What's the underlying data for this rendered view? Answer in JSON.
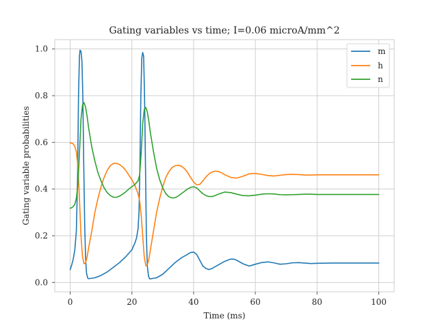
{
  "chart_data": {
    "type": "line",
    "title": "Gating variables vs time; I=0.06 microA/mm^2",
    "xlabel": "Time (ms)",
    "ylabel": "Gating variable probabilities",
    "xlim": [
      -5,
      105
    ],
    "ylim": [
      -0.04,
      1.04
    ],
    "x_ticks": [
      0,
      20,
      40,
      60,
      80,
      100
    ],
    "y_ticks": [
      0.0,
      0.2,
      0.4,
      0.6,
      0.8,
      1.0
    ],
    "x_tick_labels": [
      "0",
      "20",
      "40",
      "60",
      "80",
      "100"
    ],
    "y_tick_labels": [
      "0.0",
      "0.2",
      "0.4",
      "0.6",
      "0.8",
      "1.0"
    ],
    "grid": true,
    "legend_position": "top-right",
    "series": [
      {
        "name": "m",
        "color": "#1f77b4",
        "x": [
          0,
          0.5,
          1,
          1.5,
          2,
          2.4,
          2.7,
          3,
          3.2,
          3.5,
          3.8,
          4.1,
          4.4,
          4.7,
          5,
          5.3,
          5.7,
          6,
          8,
          10,
          12,
          14,
          16,
          18,
          20,
          21,
          21.5,
          22,
          22.3,
          22.6,
          22.9,
          23.2,
          23.5,
          23.8,
          24.1,
          24.4,
          24.7,
          25,
          25.4,
          25.8,
          28,
          30,
          32,
          34,
          36,
          38,
          39,
          40,
          41,
          42,
          43,
          44,
          45,
          46,
          48,
          50,
          52,
          53,
          54,
          56,
          58,
          60,
          62,
          64,
          66,
          68,
          70,
          72,
          74,
          76,
          78,
          80,
          85,
          90,
          95,
          100
        ],
        "values": [
          0.055,
          0.075,
          0.1,
          0.14,
          0.22,
          0.45,
          0.8,
          0.97,
          0.995,
          0.99,
          0.95,
          0.8,
          0.5,
          0.25,
          0.1,
          0.04,
          0.018,
          0.016,
          0.02,
          0.03,
          0.045,
          0.065,
          0.085,
          0.11,
          0.14,
          0.17,
          0.19,
          0.23,
          0.3,
          0.5,
          0.8,
          0.96,
          0.985,
          0.97,
          0.8,
          0.5,
          0.2,
          0.07,
          0.025,
          0.015,
          0.02,
          0.035,
          0.06,
          0.085,
          0.105,
          0.12,
          0.128,
          0.13,
          0.12,
          0.095,
          0.07,
          0.06,
          0.055,
          0.06,
          0.075,
          0.09,
          0.1,
          0.1,
          0.095,
          0.08,
          0.07,
          0.078,
          0.085,
          0.088,
          0.084,
          0.078,
          0.08,
          0.084,
          0.085,
          0.083,
          0.081,
          0.082,
          0.083,
          0.083,
          0.083,
          0.083
        ]
      },
      {
        "name": "h",
        "color": "#ff7f0e",
        "x": [
          0,
          0.5,
          1,
          1.5,
          2,
          2.5,
          3,
          3.5,
          4,
          4.5,
          5,
          5.5,
          6,
          7,
          8,
          9,
          10,
          11,
          12,
          13,
          14,
          15,
          16,
          17,
          18,
          19,
          20,
          21,
          22,
          22.5,
          23,
          23.5,
          24,
          24.5,
          25,
          25.5,
          26,
          27,
          28,
          29,
          30,
          31,
          32,
          33,
          34,
          35,
          36,
          37,
          38,
          39,
          40,
          41,
          42,
          43,
          44,
          45,
          46,
          47,
          48,
          49,
          50,
          52,
          54,
          56,
          58,
          60,
          62,
          64,
          66,
          68,
          70,
          72,
          74,
          76,
          78,
          80,
          85,
          90,
          95,
          100
        ],
        "values": [
          0.597,
          0.597,
          0.593,
          0.583,
          0.56,
          0.5,
          0.36,
          0.2,
          0.11,
          0.08,
          0.085,
          0.11,
          0.15,
          0.22,
          0.3,
          0.36,
          0.41,
          0.45,
          0.48,
          0.5,
          0.51,
          0.51,
          0.505,
          0.495,
          0.48,
          0.46,
          0.44,
          0.415,
          0.38,
          0.35,
          0.29,
          0.2,
          0.11,
          0.072,
          0.075,
          0.1,
          0.14,
          0.22,
          0.3,
          0.36,
          0.41,
          0.45,
          0.475,
          0.492,
          0.5,
          0.502,
          0.498,
          0.488,
          0.472,
          0.45,
          0.43,
          0.418,
          0.42,
          0.435,
          0.452,
          0.465,
          0.473,
          0.477,
          0.475,
          0.47,
          0.462,
          0.45,
          0.447,
          0.455,
          0.465,
          0.467,
          0.463,
          0.458,
          0.456,
          0.459,
          0.462,
          0.463,
          0.462,
          0.46,
          0.46,
          0.461,
          0.461,
          0.461,
          0.461,
          0.461
        ]
      },
      {
        "name": "n",
        "color": "#2ca02c",
        "x": [
          0,
          0.5,
          1,
          1.5,
          2,
          2.5,
          3,
          3.5,
          4,
          4.5,
          5,
          5.5,
          6,
          7,
          8,
          9,
          10,
          11,
          12,
          13,
          14,
          15,
          16,
          17,
          18,
          19,
          20,
          21,
          22,
          22.5,
          23,
          23.5,
          24,
          24.5,
          25,
          25.5,
          26,
          27,
          28,
          29,
          30,
          31,
          32,
          33,
          34,
          35,
          36,
          37,
          38,
          39,
          40,
          41,
          42,
          43,
          44,
          45,
          46,
          47,
          48,
          50,
          52,
          54,
          56,
          58,
          60,
          62,
          64,
          66,
          68,
          70,
          72,
          74,
          76,
          78,
          80,
          85,
          90,
          95,
          100
        ],
        "values": [
          0.318,
          0.32,
          0.325,
          0.335,
          0.36,
          0.42,
          0.55,
          0.7,
          0.76,
          0.77,
          0.75,
          0.71,
          0.66,
          0.58,
          0.52,
          0.47,
          0.435,
          0.405,
          0.385,
          0.372,
          0.365,
          0.365,
          0.37,
          0.378,
          0.388,
          0.4,
          0.41,
          0.42,
          0.435,
          0.46,
          0.55,
          0.68,
          0.74,
          0.75,
          0.73,
          0.69,
          0.64,
          0.56,
          0.49,
          0.44,
          0.405,
          0.38,
          0.367,
          0.362,
          0.363,
          0.37,
          0.38,
          0.39,
          0.4,
          0.407,
          0.41,
          0.405,
          0.392,
          0.38,
          0.372,
          0.368,
          0.368,
          0.372,
          0.378,
          0.387,
          0.385,
          0.378,
          0.372,
          0.371,
          0.374,
          0.378,
          0.38,
          0.379,
          0.376,
          0.375,
          0.376,
          0.377,
          0.378,
          0.378,
          0.377,
          0.377,
          0.377,
          0.377,
          0.377
        ]
      }
    ]
  }
}
